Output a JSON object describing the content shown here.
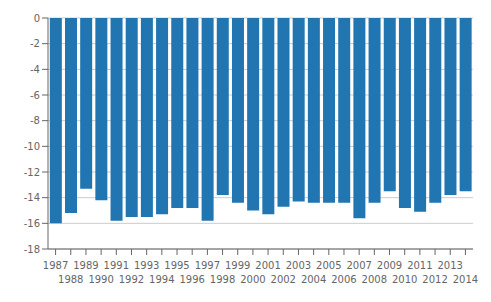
{
  "chart_data": {
    "type": "bar",
    "categories": [
      "1987",
      "1988",
      "1989",
      "1990",
      "1991",
      "1992",
      "1993",
      "1994",
      "1995",
      "1996",
      "1997",
      "1998",
      "1999",
      "2000",
      "2001",
      "2002",
      "2003",
      "2004",
      "2005",
      "2006",
      "2007",
      "2008",
      "2009",
      "2010",
      "2011",
      "2012",
      "2013",
      "2014"
    ],
    "values": [
      -16.0,
      -15.2,
      -13.3,
      -14.2,
      -15.8,
      -15.5,
      -15.5,
      -15.3,
      -14.8,
      -14.8,
      -15.8,
      -13.8,
      -14.4,
      -15.0,
      -15.3,
      -14.7,
      -14.3,
      -14.4,
      -14.4,
      -14.4,
      -15.6,
      -14.4,
      -13.5,
      -14.8,
      -15.1,
      -14.4,
      -13.8,
      -13.5
    ],
    "color": "#2175b0",
    "ylim": [
      -18,
      0
    ],
    "yticks": [
      0,
      -2,
      -4,
      -6,
      -8,
      -10,
      -12,
      -14,
      -16,
      -18
    ],
    "grid": true
  }
}
